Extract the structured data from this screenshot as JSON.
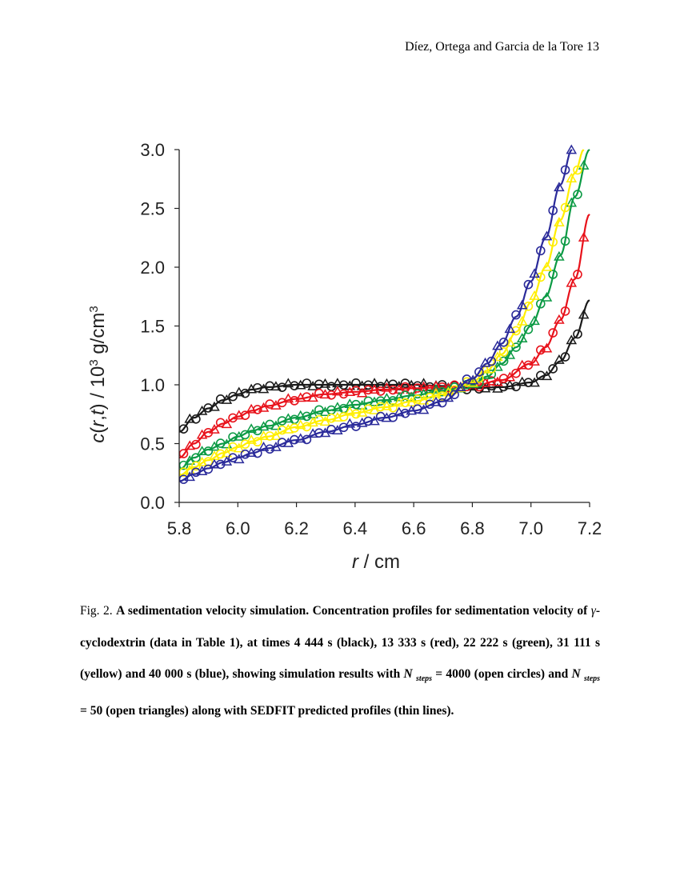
{
  "header": {
    "running_title": "Díez, Ortega and Garcia de la Tore 13"
  },
  "caption": {
    "prefix": "Fig. 2. ",
    "part1": "A sedimentation velocity simulation. Concentration profiles for sedimentation velocity of ",
    "gamma": "γ",
    "part2": "-cyclodextrin (data in Table 1), at times 4 444 s (black), 13 333 s (red), 22 222 s (green), 31 111 s (yellow) and 40 000 s (blue), showing simulation results with ",
    "n1": "N",
    "steps1": "steps",
    "part3": " = 4000 (open circles) and ",
    "n2": "N",
    "steps2": "steps",
    "part4": " = 50 (open triangles) along with SEDFIT predicted profiles (thin lines)."
  },
  "chart_data": {
    "type": "scatter",
    "xlabel": "r / cm",
    "ylabel": "c(r,t) / 10³ g/cm³",
    "xlim": [
      5.8,
      7.2
    ],
    "ylim": [
      0.0,
      3.0
    ],
    "x_ticks": [
      "5.8",
      "6.0",
      "6.2",
      "6.4",
      "6.6",
      "6.8",
      "7.0",
      "7.2"
    ],
    "y_ticks": [
      "0.0",
      "0.5",
      "1.0",
      "1.5",
      "2.0",
      "2.5",
      "3.0"
    ],
    "legend": [
      "N_steps = 4000 (open circles)",
      "N_steps = 50 (open triangles)",
      "SEDFIT predicted profiles (thin lines)"
    ],
    "series": [
      {
        "name": "4 444 s",
        "color": "#1a1a1a",
        "x": [
          5.8,
          5.85,
          5.9,
          5.95,
          6.0,
          6.05,
          6.1,
          6.2,
          6.3,
          6.4,
          6.5,
          6.6,
          6.7,
          6.8,
          6.9,
          7.0,
          7.05,
          7.1,
          7.15,
          7.2
        ],
        "y": [
          0.6,
          0.72,
          0.8,
          0.87,
          0.92,
          0.96,
          0.98,
          1.0,
          1.0,
          1.0,
          1.0,
          1.0,
          0.99,
          0.97,
          0.98,
          1.02,
          1.08,
          1.2,
          1.4,
          1.72
        ]
      },
      {
        "name": "13 333 s",
        "color": "#e8121b",
        "x": [
          5.8,
          5.85,
          5.9,
          5.95,
          6.0,
          6.05,
          6.1,
          6.2,
          6.3,
          6.4,
          6.5,
          6.6,
          6.7,
          6.8,
          6.9,
          7.0,
          7.05,
          7.1,
          7.15,
          7.2
        ],
        "y": [
          0.38,
          0.5,
          0.6,
          0.67,
          0.73,
          0.78,
          0.82,
          0.88,
          0.92,
          0.94,
          0.96,
          0.97,
          0.98,
          0.99,
          1.04,
          1.18,
          1.32,
          1.55,
          1.9,
          2.45
        ]
      },
      {
        "name": "22 222 s",
        "color": "#0b9a44",
        "x": [
          5.8,
          5.85,
          5.9,
          5.95,
          6.0,
          6.05,
          6.1,
          6.2,
          6.3,
          6.4,
          6.5,
          6.6,
          6.7,
          6.8,
          6.85,
          6.9,
          6.95,
          7.0,
          7.05,
          7.1,
          7.15,
          7.2
        ],
        "y": [
          0.28,
          0.38,
          0.45,
          0.5,
          0.56,
          0.61,
          0.65,
          0.72,
          0.78,
          0.83,
          0.87,
          0.91,
          0.95,
          1.0,
          1.07,
          1.18,
          1.32,
          1.5,
          1.75,
          2.1,
          2.6,
          3.0
        ]
      },
      {
        "name": "31 111 s",
        "color": "#ffee00",
        "x": [
          5.8,
          5.85,
          5.9,
          5.95,
          6.0,
          6.05,
          6.1,
          6.2,
          6.3,
          6.4,
          6.5,
          6.6,
          6.7,
          6.8,
          6.85,
          6.9,
          6.95,
          7.0,
          7.05,
          7.1,
          7.15,
          7.18
        ],
        "y": [
          0.23,
          0.3,
          0.36,
          0.42,
          0.47,
          0.52,
          0.56,
          0.64,
          0.7,
          0.76,
          0.81,
          0.86,
          0.92,
          1.02,
          1.12,
          1.26,
          1.45,
          1.7,
          2.0,
          2.4,
          2.8,
          3.0
        ]
      },
      {
        "name": "40 000 s",
        "color": "#2a2a9a",
        "x": [
          5.8,
          5.85,
          5.9,
          5.95,
          6.0,
          6.05,
          6.1,
          6.2,
          6.3,
          6.4,
          6.5,
          6.6,
          6.7,
          6.8,
          6.85,
          6.9,
          6.95,
          7.0,
          7.05,
          7.1,
          7.14
        ],
        "y": [
          0.18,
          0.24,
          0.29,
          0.34,
          0.38,
          0.42,
          0.46,
          0.53,
          0.6,
          0.66,
          0.72,
          0.78,
          0.86,
          1.05,
          1.18,
          1.35,
          1.58,
          1.88,
          2.25,
          2.7,
          3.0
        ]
      }
    ]
  }
}
